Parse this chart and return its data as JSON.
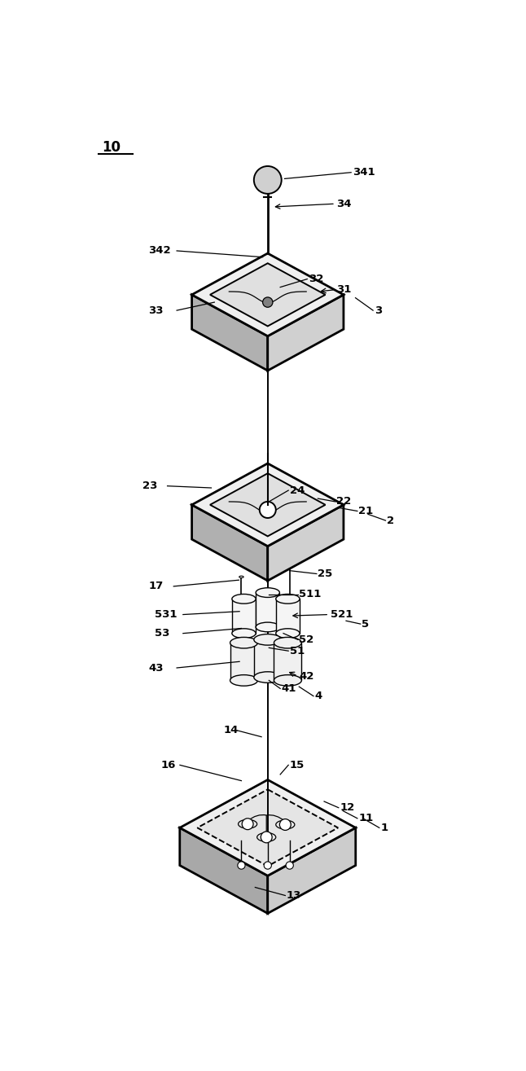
{
  "bg_color": "#ffffff",
  "line_color": "#000000",
  "fig_width": 6.46,
  "fig_height": 13.15,
  "plate_fc_top": "#f0f0f0",
  "plate_fc_left": "#c0c0c0",
  "plate_fc_right": "#d8d8d8",
  "plate_fc_inner": "#e8e8e8",
  "cyl_fc": "#f5f5f5",
  "cyl_ec": "#000000"
}
